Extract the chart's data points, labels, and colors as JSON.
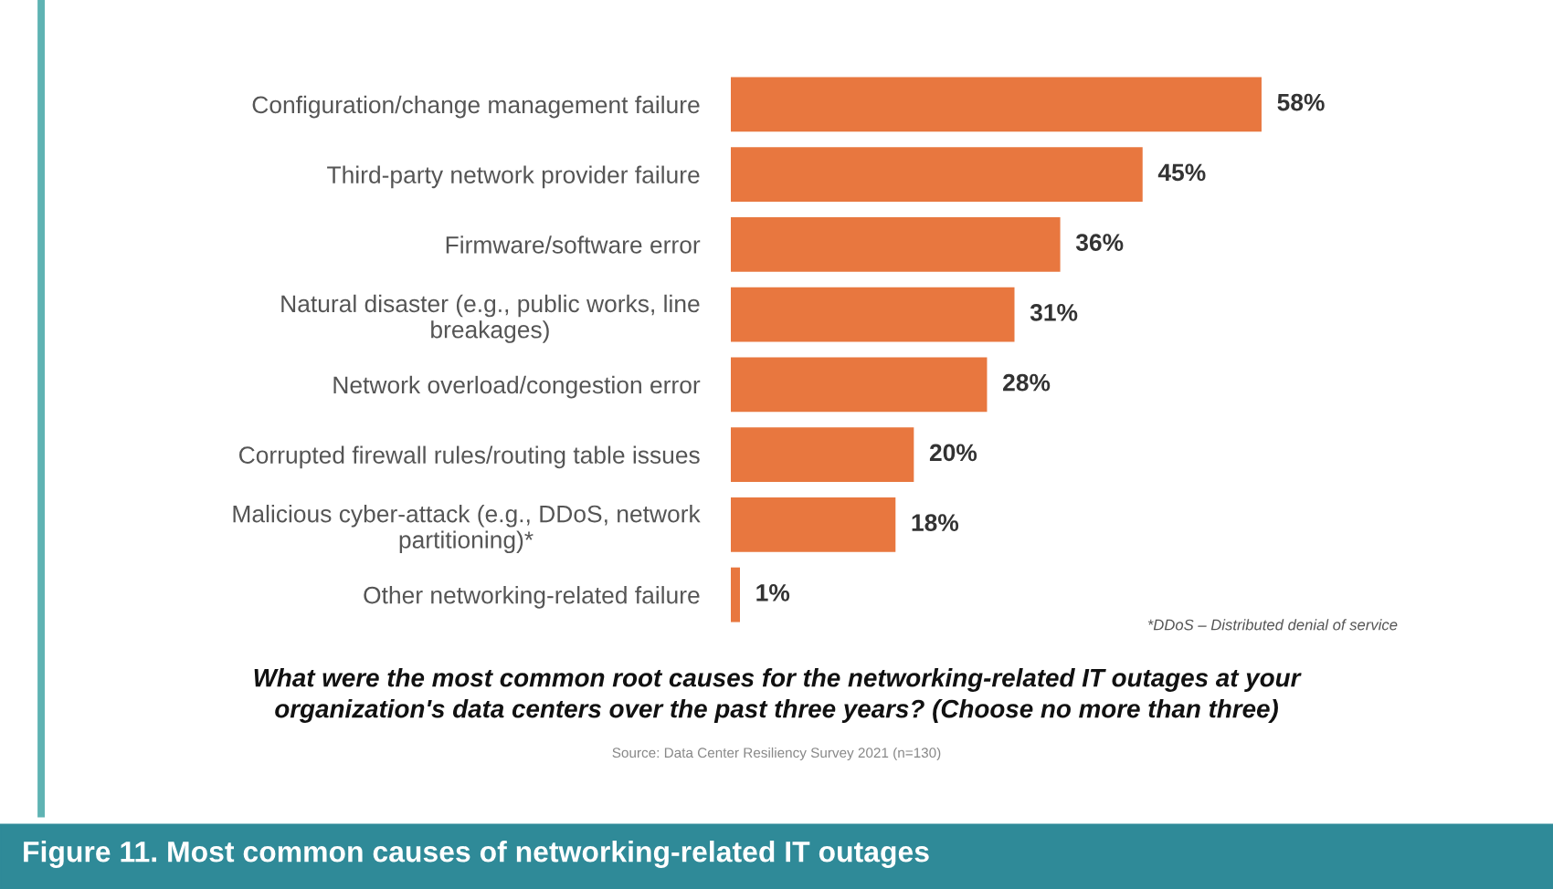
{
  "chart_data": {
    "type": "bar",
    "orientation": "horizontal",
    "title": "Figure 11. Most common causes of networking-related IT outages",
    "subtitle": "What were the most common root causes for the networking-related IT outages at your\norganization's data centers over the past three years? (Choose no more than three)",
    "categories": [
      "Configuration/change management failure",
      "Third-party network provider failure",
      "Firmware/software error",
      "Natural disaster (e.g., public works, line\nbreakages)",
      "Network overload/congestion error",
      "Corrupted firewall rules/routing table issues",
      "Malicious cyber-attack (e.g., DDoS, network\npartitioning)*",
      "Other networking-related failure"
    ],
    "values": [
      58,
      45,
      36,
      31,
      28,
      20,
      18,
      1
    ],
    "value_labels": [
      "58%",
      "45%",
      "36%",
      "31%",
      "28%",
      "20%",
      "18%",
      "1%"
    ],
    "color": "#e8773f",
    "tick_labels": "y",
    "grid": false,
    "legend": false,
    "annotations": [
      "*DDoS – Distributed denial of service",
      "Source: Data Center Resiliency Survey 2021 (n=130)"
    ]
  }
}
